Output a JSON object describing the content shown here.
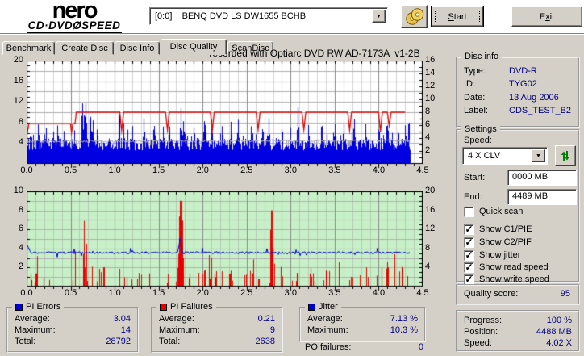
{
  "icons": {
    "dropdown": "▼",
    "check": "✓"
  },
  "toolbar": {
    "logo_line1": "nero",
    "logo_line2_left": "CD·DVD",
    "logo_disc": "Ø",
    "logo_line2_right": "SPEED",
    "drive_selector": "[0:0]    BENQ DVD LS DW1655 BCHB",
    "start_label_u": "S",
    "start_label_rest": "tart",
    "exit_pre": "E",
    "exit_u": "x",
    "exit_rest": "it"
  },
  "tabs": [
    {
      "label": "Benchmark",
      "active": false
    },
    {
      "label": "Create Disc",
      "active": false
    },
    {
      "label": "Disc Info",
      "active": false
    },
    {
      "label": "Disc Quality",
      "active": true
    },
    {
      "label": "ScanDisc",
      "active": false
    }
  ],
  "disc_info": {
    "title": "Disc info",
    "rows": [
      [
        "Type:",
        "DVD-R"
      ],
      [
        "ID:",
        "TYG02"
      ],
      [
        "Date:",
        "13 Aug 2006"
      ],
      [
        "Label:",
        "CDS_TEST_B2"
      ]
    ]
  },
  "settings": {
    "title": "Settings",
    "speed_label": "Speed:",
    "speed_value": "4 X CLV",
    "start_label": "Start:",
    "start_value": "0000 MB",
    "end_label": "End:",
    "end_value": "4489 MB",
    "checkboxes": [
      {
        "label": "Quick scan",
        "checked": false
      },
      {
        "label": "Show C1/PIE",
        "checked": true
      },
      {
        "label": "Show C2/PIF",
        "checked": true
      },
      {
        "label": "Show jitter",
        "checked": true
      },
      {
        "label": "Show read speed",
        "checked": true
      },
      {
        "label": "Show write speed",
        "checked": true
      }
    ]
  },
  "quality": {
    "label": "Quality score:",
    "value": "95"
  },
  "stats": {
    "pi_errors": {
      "title": "PI Errors",
      "color": "#0000c8",
      "rows": [
        [
          "Average:",
          "3.04"
        ],
        [
          "Maximum:",
          "14"
        ],
        [
          "Total:",
          "28792"
        ]
      ]
    },
    "pi_failures": {
      "title": "PI Failures",
      "color": "#e80000",
      "rows": [
        [
          "Average:",
          "0.21"
        ],
        [
          "Maximum:",
          "9"
        ],
        [
          "Total:",
          "2638"
        ]
      ]
    },
    "jitter": {
      "title": "Jitter",
      "color": "#0000c8",
      "rows": [
        [
          "Average:",
          "7.13 %"
        ],
        [
          "Maximum:",
          "10.3 %"
        ]
      ]
    },
    "po_failures": {
      "label": "PO failures:",
      "value": "0"
    },
    "progress": {
      "rows": [
        [
          "Progress:",
          "100 %"
        ],
        [
          "Position:",
          "4488 MB"
        ],
        [
          "Speed:",
          "4.02 X"
        ]
      ]
    }
  },
  "chart_data": [
    {
      "type": "area",
      "name": "pi-errors-and-speed",
      "title": "recorded with Optiarc DVD RW AD-7173A  v1-2B",
      "x_min": 0,
      "x_max": 4.5,
      "x_tick_labels": [
        "0.0",
        "0.5",
        "1.0",
        "1.5",
        "2.0",
        "2.5",
        "3.0",
        "3.5",
        "4.0",
        "4.5"
      ],
      "left_axis": {
        "max": 20,
        "tick_labels": [
          20,
          16,
          12,
          8,
          4
        ]
      },
      "right_axis": {
        "max": 16,
        "tick_labels": [
          16,
          14,
          12,
          10,
          8,
          6,
          4,
          2
        ]
      },
      "bg": "#ffffff",
      "data_end": 4.36,
      "seed": 20060813,
      "series": {
        "pi_errors": {
          "name": "PI Errors",
          "color": "#0000e0",
          "base_min": 2.6,
          "base_max": 4.9,
          "extra_prob": 0.13,
          "extra_max": 2.8,
          "spikes": [
            [
              0.05,
              6.5
            ],
            [
              0.13,
              8.2
            ],
            [
              0.22,
              7.0
            ],
            [
              0.3,
              7.0
            ],
            [
              0.35,
              8.0
            ],
            [
              0.42,
              6.8
            ],
            [
              0.63,
              13.0
            ],
            [
              0.655,
              11.5
            ],
            [
              0.67,
              12.2
            ],
            [
              0.72,
              11.0
            ],
            [
              0.75,
              9.0
            ],
            [
              0.8,
              7.5
            ],
            [
              1.05,
              12.1
            ],
            [
              1.1,
              8.0
            ],
            [
              1.2,
              7.5
            ],
            [
              1.33,
              9.2
            ],
            [
              1.45,
              8.0
            ],
            [
              1.55,
              7.6
            ],
            [
              1.62,
              8.0
            ],
            [
              1.75,
              11.0
            ],
            [
              1.78,
              9.0
            ],
            [
              1.9,
              8.0
            ],
            [
              2.02,
              9.8
            ],
            [
              2.1,
              9.0
            ],
            [
              2.22,
              8.0
            ],
            [
              2.32,
              8.6
            ],
            [
              2.4,
              9.0
            ],
            [
              2.55,
              8.0
            ],
            [
              2.68,
              8.0
            ],
            [
              2.75,
              9.0
            ],
            [
              2.9,
              8.0
            ],
            [
              3.08,
              11.2
            ],
            [
              3.2,
              8.0
            ],
            [
              3.35,
              9.0
            ],
            [
              3.5,
              8.0
            ],
            [
              3.6,
              8.4
            ],
            [
              3.72,
              9.0
            ],
            [
              3.85,
              8.0
            ],
            [
              4.0,
              8.0
            ],
            [
              4.1,
              8.6
            ],
            [
              4.22,
              7.5
            ],
            [
              4.3,
              8.0
            ],
            [
              4.34,
              9.7
            ]
          ]
        },
        "read_speed": {
          "name": "read speed",
          "color": "#a8a8a8",
          "level": 4.35,
          "noise": 0.5,
          "trend": 0.04,
          "tick_prob": 0.1
        },
        "write_speed": {
          "name": "write speed",
          "color": "#e00000",
          "points": [
            [
              0,
              5.2
            ],
            [
              0.025,
              7.75
            ],
            [
              0.5,
              7.75
            ],
            [
              0.51,
              6.0
            ],
            [
              0.525,
              7.75
            ],
            [
              0.55,
              7.75
            ],
            [
              0.565,
              10.0
            ],
            [
              4.3,
              10.0
            ]
          ],
          "dips": [
            [
              1.08,
              6.4
            ],
            [
              1.6,
              6.6
            ],
            [
              2.11,
              6.5
            ],
            [
              2.63,
              6.6
            ],
            [
              3.15,
              6.6
            ],
            [
              3.67,
              6.5
            ],
            [
              4.02,
              6.2
            ],
            [
              4.12,
              7.4
            ]
          ],
          "dip_halfwidth": 0.022
        }
      }
    },
    {
      "type": "bars+line",
      "name": "pi-failures-and-jitter",
      "x_min": 0,
      "x_max": 4.5,
      "x_tick_labels": [
        "0.0",
        "0.5",
        "1.0",
        "1.5",
        "2.0",
        "2.5",
        "3.0",
        "3.5",
        "4.0",
        "4.5"
      ],
      "left_axis": {
        "max": 10,
        "tick_labels": [
          10,
          8,
          6,
          4,
          2
        ]
      },
      "right_axis": {
        "max": 20,
        "tick_labels": [
          20,
          16,
          12,
          8,
          4
        ]
      },
      "bg": "#c8f0c8",
      "data_end": 4.36,
      "seed": 4177,
      "series": {
        "pi_failures": {
          "name": "PI Failures",
          "color": "#e80000",
          "small_prob": 0.17,
          "small_min": 0.5,
          "small_max": 2.2,
          "tall_prob": 0.05,
          "tall_extra": 1.2,
          "spikes": [
            [
              0.12,
              3.2,
              0.006
            ],
            [
              0.55,
              3.7,
              0.006
            ],
            [
              0.65,
              6.9,
              0.012
            ],
            [
              0.68,
              4.5,
              0.008
            ],
            [
              1.6,
              2.2,
              0.006
            ],
            [
              1.75,
              9.0,
              0.035
            ],
            [
              2.02,
              2.6,
              0.006
            ],
            [
              2.07,
              3.3,
              0.008
            ],
            [
              2.1,
              3.0,
              0.006
            ],
            [
              2.15,
              2.6,
              0.006
            ],
            [
              2.78,
              8.0,
              0.022
            ],
            [
              3.55,
              3.3,
              0.006
            ],
            [
              4.1,
              3.4,
              0.006
            ],
            [
              4.18,
              3.4,
              0.006
            ]
          ]
        },
        "jitter": {
          "name": "Jitter",
          "color": "#0000cc",
          "level": 3.55,
          "noise": 0.22,
          "burst_prob": 0.05,
          "burst": 0.5,
          "peak": [
            1.745,
            1.6,
            0.012
          ],
          "start_value": 4.5
        }
      }
    }
  ]
}
